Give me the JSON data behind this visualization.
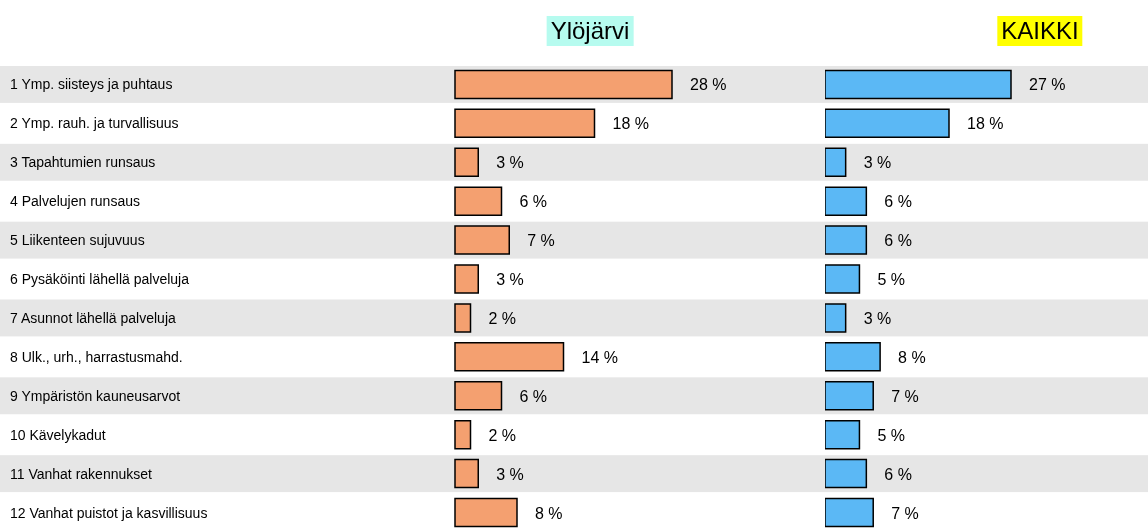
{
  "chart_data": [
    {
      "type": "bar",
      "orientation": "horizontal",
      "title": "Ylöjärvi",
      "categories": [
        "1 Ymp. siisteys ja puhtaus",
        "2 Ymp. rauh. ja turvallisuus",
        "3 Tapahtumien runsaus",
        "4 Palvelujen runsaus",
        "5 Liikenteen sujuvuus",
        "6 Pysäköinti lähellä palveluja",
        "7 Asunnot lähellä palveluja",
        "8 Ulk., urh., harrastusmahd.",
        "9 Ympäristön kauneusarvot",
        "10 Kävelykadut",
        "11 Vanhat rakennukset",
        "12 Vanhat puistot ja kasvillisuus"
      ],
      "values": [
        28,
        18,
        3,
        6,
        7,
        3,
        2,
        14,
        6,
        2,
        3,
        8
      ],
      "value_labels": [
        "28 %",
        "18 %",
        "3 %",
        "6 %",
        "7 %",
        "3 %",
        "2 %",
        "14 %",
        "6 %",
        "2 %",
        "3 %",
        "8 %"
      ],
      "color": "#f4a070",
      "tick_labels": "y"
    },
    {
      "type": "bar",
      "orientation": "horizontal",
      "title": "KAIKKI",
      "categories": [
        null,
        null,
        null,
        null,
        null,
        null,
        null,
        null,
        null,
        null,
        null,
        null
      ],
      "values": [
        27,
        18,
        3,
        6,
        6,
        5,
        3,
        8,
        7,
        5,
        6,
        7
      ],
      "value_labels": [
        "27 %",
        "18 %",
        "3 %",
        "6 %",
        "6 %",
        "5 %",
        "3 %",
        "8 %",
        "7 %",
        "5 %",
        "6 %",
        "7 %"
      ],
      "color": "#5bb8f5",
      "tick_labels": false
    }
  ]
}
